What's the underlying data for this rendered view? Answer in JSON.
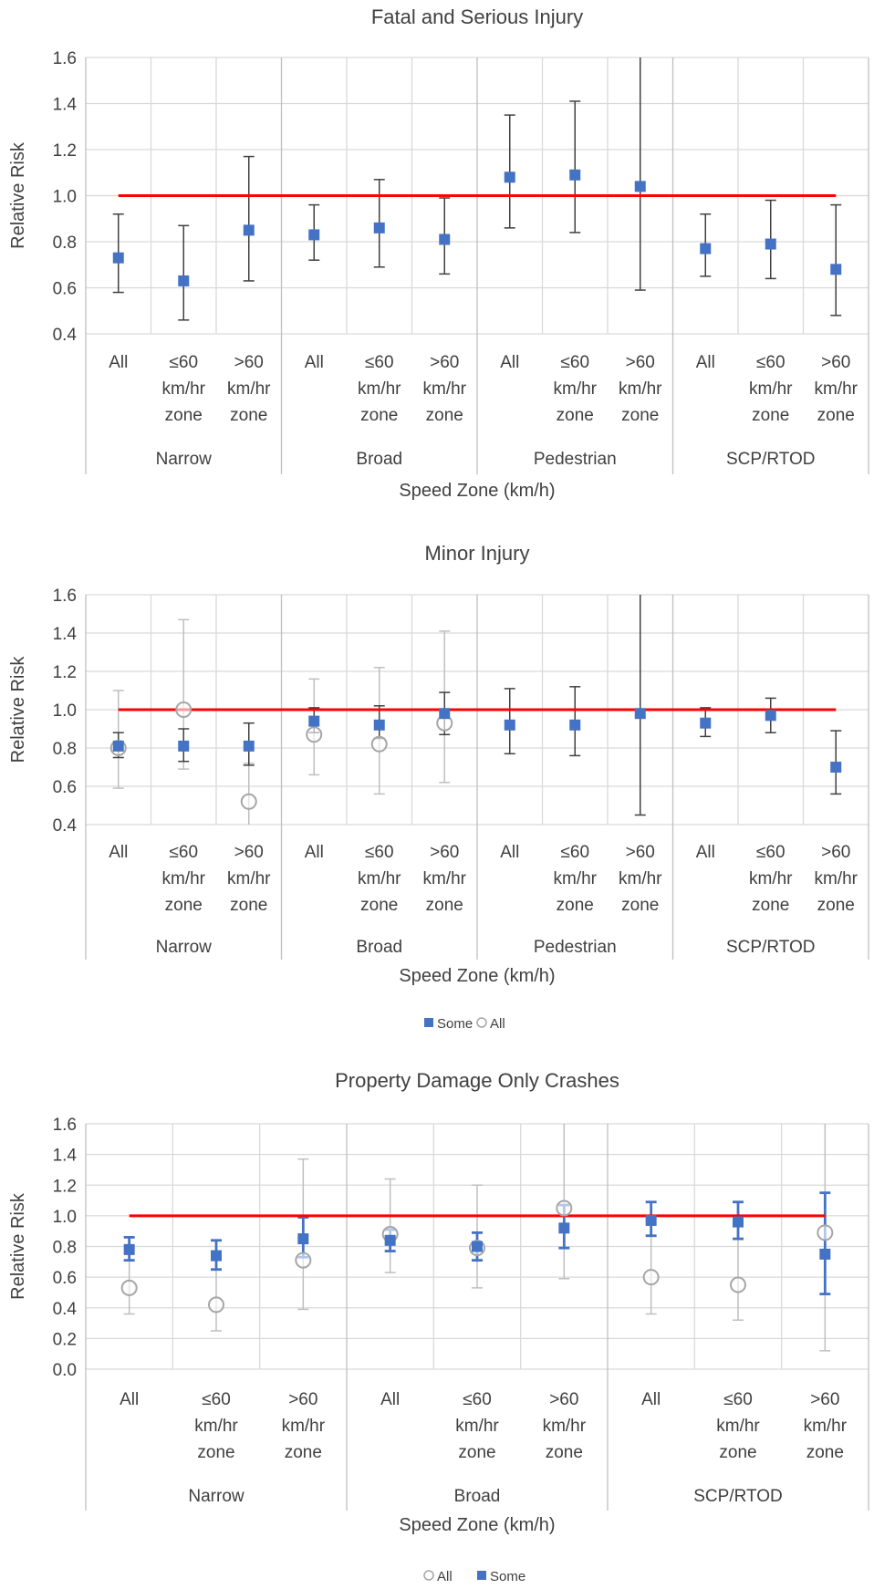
{
  "chart_data": [
    {
      "type": "scatter",
      "title": "Fatal and Serious Injury",
      "xlabel": "Speed Zone (km/h)",
      "ylabel": "Relative Risk",
      "ylim": [
        0.4,
        1.6
      ],
      "yticks": [
        "0.4",
        "0.6",
        "0.8",
        "1.0",
        "1.2",
        "1.4",
        "1.6"
      ],
      "grid": true,
      "reference_line": 1.0,
      "categories": [
        [
          "All"
        ],
        [
          "≤60",
          "km/hr",
          "zone"
        ],
        [
          ">60",
          "km/hr",
          "zone"
        ],
        [
          "All"
        ],
        [
          "≤60",
          "km/hr",
          "zone"
        ],
        [
          ">60",
          "km/hr",
          "zone"
        ],
        [
          "All"
        ],
        [
          "≤60",
          "km/hr",
          "zone"
        ],
        [
          ">60",
          "km/hr",
          "zone"
        ],
        [
          "All"
        ],
        [
          "≤60",
          "km/hr",
          "zone"
        ],
        [
          ">60",
          "km/hr",
          "zone"
        ]
      ],
      "groups": [
        "Narrow",
        "Broad",
        "Pedestrian",
        "SCP/RTOD"
      ],
      "legend": [],
      "series": [
        {
          "marker": "square",
          "color": "#4472C4",
          "err_color": "#404040",
          "values": [
            0.73,
            0.63,
            0.85,
            0.83,
            0.86,
            0.81,
            1.08,
            1.09,
            1.04,
            0.77,
            0.79,
            0.68
          ],
          "lower": [
            0.58,
            0.46,
            0.63,
            0.72,
            0.69,
            0.66,
            0.86,
            0.84,
            0.59,
            0.65,
            0.64,
            0.48
          ],
          "upper": [
            0.92,
            0.87,
            1.17,
            0.96,
            1.07,
            0.99,
            1.35,
            1.41,
            1.6,
            0.92,
            0.98,
            0.96
          ]
        }
      ]
    },
    {
      "type": "scatter",
      "title": "Minor Injury",
      "xlabel": "Speed Zone (km/h)",
      "ylabel": "Relative Risk",
      "ylim": [
        0.4,
        1.6
      ],
      "yticks": [
        "0.4",
        "0.6",
        "0.8",
        "1.0",
        "1.2",
        "1.4",
        "1.6"
      ],
      "grid": true,
      "reference_line": 1.0,
      "categories": [
        [
          "All"
        ],
        [
          "≤60",
          "km/hr",
          "zone"
        ],
        [
          ">60",
          "km/hr",
          "zone"
        ],
        [
          "All"
        ],
        [
          "≤60",
          "km/hr",
          "zone"
        ],
        [
          ">60",
          "km/hr",
          "zone"
        ],
        [
          "All"
        ],
        [
          "≤60",
          "km/hr",
          "zone"
        ],
        [
          ">60",
          "km/hr",
          "zone"
        ],
        [
          "All"
        ],
        [
          "≤60",
          "km/hr",
          "zone"
        ],
        [
          ">60",
          "km/hr",
          "zone"
        ]
      ],
      "groups": [
        "Narrow",
        "Broad",
        "Pedestrian",
        "SCP/RTOD"
      ],
      "legend": [
        "Some",
        "All"
      ],
      "series": [
        {
          "name": "All",
          "marker": "circle",
          "color": "#A6A6A6",
          "err_color": "#BFBFBF",
          "values": [
            0.8,
            1.0,
            0.52,
            0.87,
            0.82,
            0.93,
            null,
            null,
            null,
            null,
            null,
            null
          ],
          "lower": [
            0.59,
            0.69,
            0.36,
            0.66,
            0.56,
            0.62,
            null,
            null,
            null,
            null,
            null,
            null
          ],
          "upper": [
            1.1,
            1.47,
            0.72,
            1.16,
            1.22,
            1.41,
            null,
            null,
            null,
            null,
            null,
            null
          ]
        },
        {
          "name": "Some",
          "marker": "square",
          "color": "#4472C4",
          "err_color": "#404040",
          "values": [
            0.81,
            0.81,
            0.81,
            0.94,
            0.92,
            0.98,
            0.92,
            0.92,
            0.98,
            0.93,
            0.97,
            0.7
          ],
          "lower": [
            0.75,
            0.73,
            0.71,
            0.88,
            0.85,
            0.87,
            0.77,
            0.76,
            0.45,
            0.86,
            0.88,
            0.56
          ],
          "upper": [
            0.88,
            0.9,
            0.93,
            1.01,
            1.02,
            1.09,
            1.11,
            1.12,
            1.6,
            1.01,
            1.06,
            0.89
          ]
        }
      ]
    },
    {
      "type": "scatter",
      "title": "Property Damage Only Crashes",
      "xlabel": "Speed Zone (km/h)",
      "ylabel": "Relative Risk",
      "ylim": [
        0.0,
        1.6
      ],
      "yticks": [
        "0.0",
        "0.2",
        "0.4",
        "0.6",
        "0.8",
        "1.0",
        "1.2",
        "1.4",
        "1.6"
      ],
      "grid": true,
      "reference_line": 1.0,
      "categories": [
        [
          "All"
        ],
        [
          "≤60",
          "km/hr",
          "zone"
        ],
        [
          ">60",
          "km/hr",
          "zone"
        ],
        [
          "All"
        ],
        [
          "≤60",
          "km/hr",
          "zone"
        ],
        [
          ">60",
          "km/hr",
          "zone"
        ],
        [
          "All"
        ],
        [
          "≤60",
          "km/hr",
          "zone"
        ],
        [
          ">60",
          "km/hr",
          "zone"
        ]
      ],
      "groups": [
        "Narrow",
        "Broad",
        "SCP/RTOD"
      ],
      "legend": [
        "All",
        "Some"
      ],
      "series": [
        {
          "name": "All",
          "marker": "circle",
          "color": "#A6A6A6",
          "err_color": "#BFBFBF",
          "values": [
            0.53,
            0.42,
            0.71,
            0.88,
            0.79,
            1.05,
            0.6,
            0.55,
            0.89
          ],
          "lower": [
            0.36,
            0.25,
            0.39,
            0.63,
            0.53,
            0.59,
            0.36,
            0.32,
            0.12
          ],
          "upper": [
            0.79,
            0.72,
            1.37,
            1.24,
            1.2,
            1.6,
            0.98,
            0.94,
            1.6
          ]
        },
        {
          "name": "Some",
          "marker": "square",
          "color": "#4472C4",
          "err_color": "#4472C4",
          "values": [
            0.78,
            0.74,
            0.85,
            0.84,
            0.8,
            0.92,
            0.97,
            0.96,
            0.75
          ],
          "lower": [
            0.71,
            0.65,
            0.73,
            0.77,
            0.71,
            0.79,
            0.87,
            0.85,
            0.49
          ],
          "upper": [
            0.86,
            0.84,
            0.99,
            0.91,
            0.89,
            1.07,
            1.09,
            1.09,
            1.15
          ]
        }
      ]
    }
  ]
}
